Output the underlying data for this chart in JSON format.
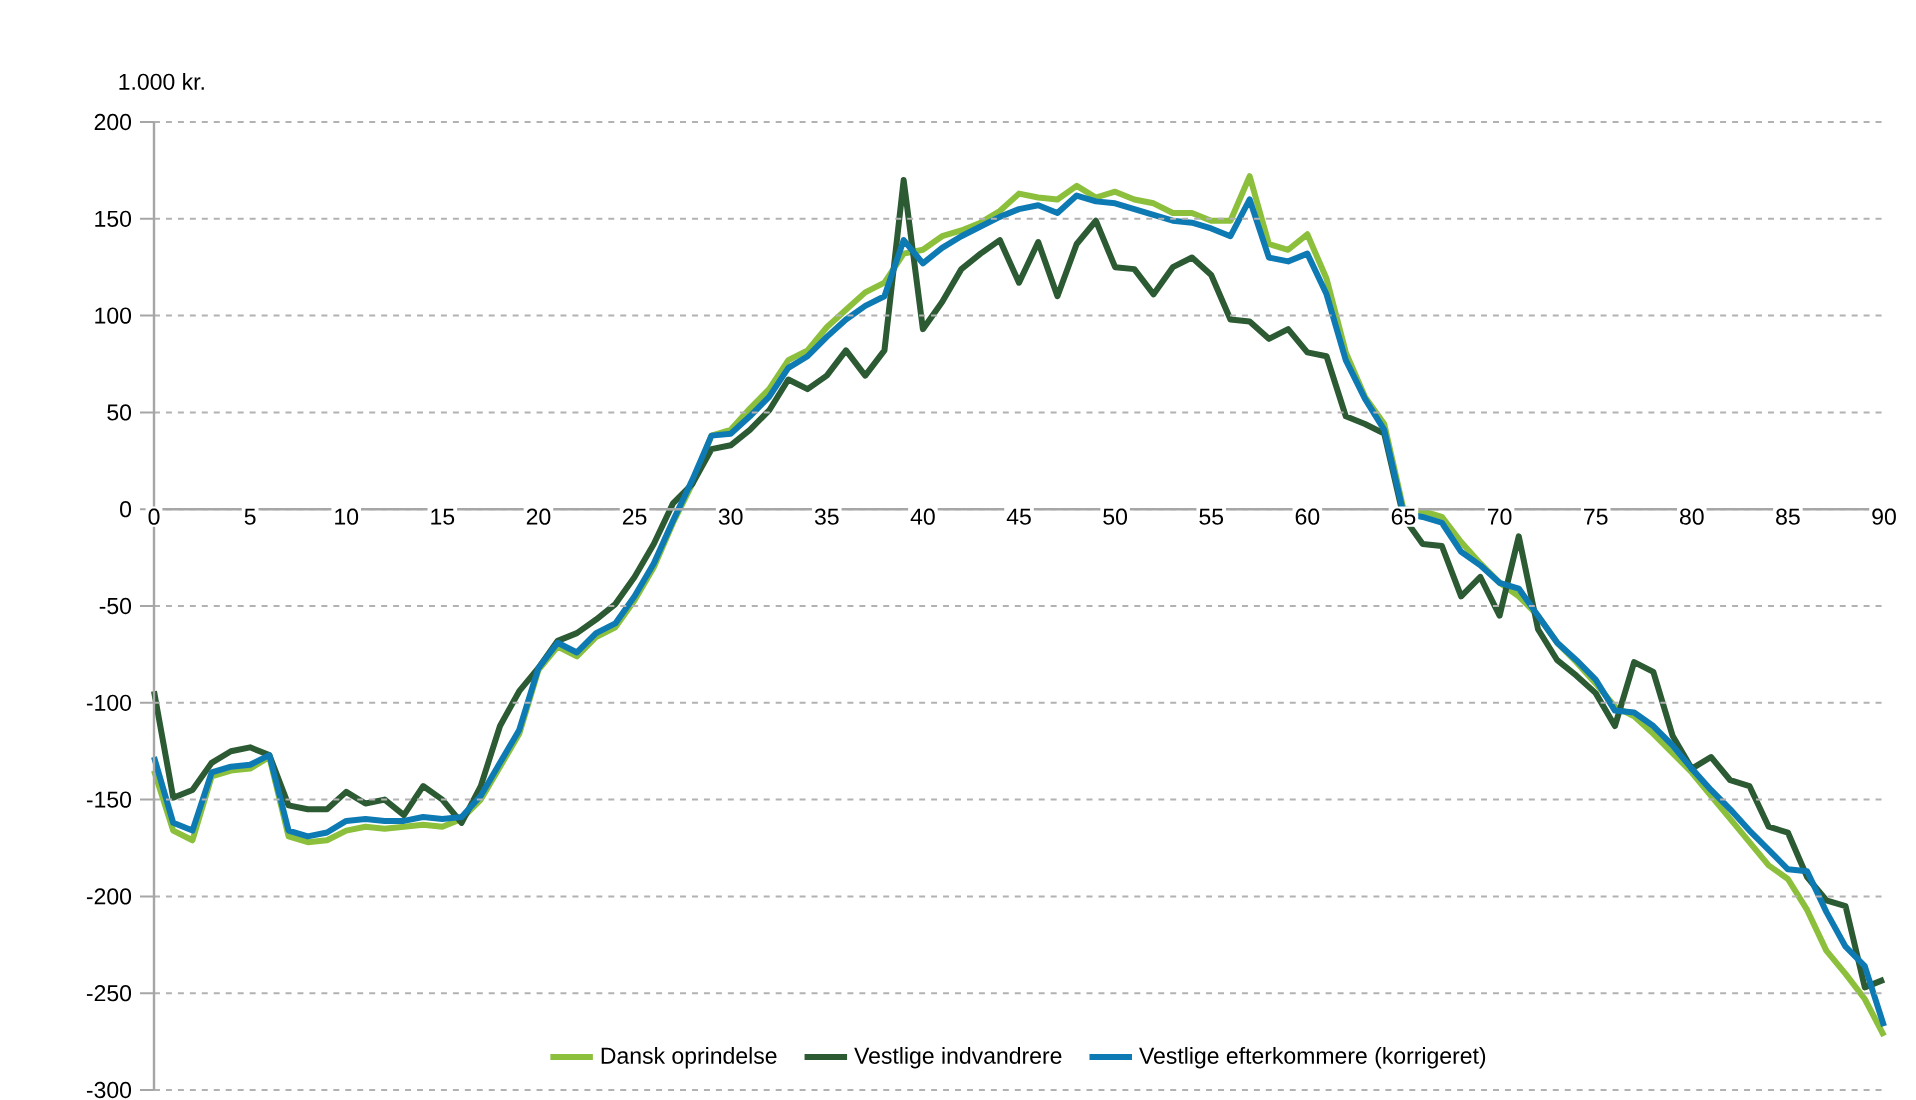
{
  "chart_data": {
    "type": "line",
    "ylabel": "1.000 kr.",
    "x": [
      0,
      1,
      2,
      3,
      4,
      5,
      6,
      7,
      8,
      9,
      10,
      11,
      12,
      13,
      14,
      15,
      16,
      17,
      18,
      19,
      20,
      21,
      22,
      23,
      24,
      25,
      26,
      27,
      28,
      29,
      30,
      31,
      32,
      33,
      34,
      35,
      36,
      37,
      38,
      39,
      40,
      41,
      42,
      43,
      44,
      45,
      46,
      47,
      48,
      49,
      50,
      51,
      52,
      53,
      54,
      55,
      56,
      57,
      58,
      59,
      60,
      61,
      62,
      63,
      64,
      65,
      66,
      67,
      68,
      69,
      70,
      71,
      72,
      73,
      74,
      75,
      76,
      77,
      78,
      79,
      80,
      81,
      82,
      83,
      84,
      85,
      86,
      87,
      88,
      89,
      90
    ],
    "xlim": [
      0,
      90
    ],
    "xticks": [
      0,
      5,
      10,
      15,
      20,
      25,
      30,
      35,
      40,
      45,
      50,
      55,
      60,
      65,
      70,
      75,
      80,
      85,
      90
    ],
    "ylim": [
      -300,
      200
    ],
    "yticks": [
      -300,
      -250,
      -200,
      -150,
      -100,
      -50,
      0,
      50,
      100,
      150,
      200
    ],
    "grid": "y",
    "legend": "bottom",
    "line_style": "solid",
    "marker": "none",
    "series": [
      {
        "name": "Dansk oprindelse",
        "color": "#8cc03c",
        "values": [
          -135,
          -166,
          -171,
          -138,
          -135,
          -134,
          -128,
          -169,
          -172,
          -171,
          -166,
          -164,
          -165,
          -164,
          -163,
          -164,
          -160,
          -150,
          -133,
          -116,
          -83,
          -71,
          -76,
          -66,
          -61,
          -47,
          -30,
          -7,
          13,
          38,
          41,
          52,
          62,
          77,
          82,
          94,
          103,
          112,
          117,
          132,
          134,
          141,
          144,
          148,
          154,
          163,
          161,
          160,
          167,
          161,
          164,
          160,
          158,
          153,
          153,
          149,
          149,
          172,
          137,
          134,
          142,
          119,
          81,
          58,
          44,
          0,
          -1,
          -4,
          -17,
          -28,
          -38,
          -45,
          -55,
          -69,
          -79,
          -90,
          -102,
          -107,
          -116,
          -126,
          -136,
          -148,
          -160,
          -172,
          -184,
          -191,
          -207,
          -228,
          -240,
          -253,
          -272
        ]
      },
      {
        "name": "Vestlige indvandrere",
        "color": "#2b5a33",
        "values": [
          -94,
          -149,
          -145,
          -131,
          -125,
          -123,
          -127,
          -153,
          -155,
          -155,
          -146,
          -152,
          -150,
          -158,
          -143,
          -150,
          -162,
          -143,
          -112,
          -94,
          -82,
          -68,
          -64,
          -57,
          -49,
          -35,
          -18,
          3,
          13,
          31,
          33,
          41,
          51,
          67,
          62,
          69,
          82,
          69,
          82,
          170,
          93,
          107,
          124,
          132,
          139,
          117,
          138,
          110,
          137,
          149,
          125,
          124,
          111,
          125,
          130,
          121,
          98,
          97,
          88,
          93,
          81,
          79,
          48,
          44,
          39,
          -4,
          -18,
          -19,
          -45,
          -35,
          -55,
          -14,
          -62,
          -78,
          -86,
          -95,
          -112,
          -79,
          -84,
          -117,
          -134,
          -128,
          -140,
          -143,
          -164,
          -167,
          -190,
          -202,
          -205,
          -247,
          -243
        ]
      },
      {
        "name": "Vestlige efterkommere (korrigeret)",
        "color": "#0e7ab4",
        "values": [
          -128,
          -162,
          -166,
          -136,
          -133,
          -132,
          -127,
          -166,
          -169,
          -167,
          -161,
          -160,
          -161,
          -161,
          -159,
          -160,
          -159,
          -148,
          -131,
          -114,
          -82,
          -69,
          -74,
          -64,
          -59,
          -45,
          -28,
          -6,
          15,
          38,
          39,
          48,
          58,
          73,
          79,
          89,
          98,
          105,
          110,
          139,
          127,
          135,
          141,
          146,
          151,
          155,
          157,
          153,
          162,
          159,
          158,
          155,
          152,
          149,
          148,
          145,
          141,
          160,
          130,
          128,
          132,
          111,
          77,
          57,
          41,
          -2,
          -4,
          -7,
          -22,
          -29,
          -38,
          -41,
          -55,
          -69,
          -78,
          -88,
          -104,
          -105,
          -112,
          -122,
          -134,
          -145,
          -155,
          -166,
          -176,
          -186,
          -187,
          -208,
          -226,
          -236,
          -267
        ]
      }
    ]
  }
}
